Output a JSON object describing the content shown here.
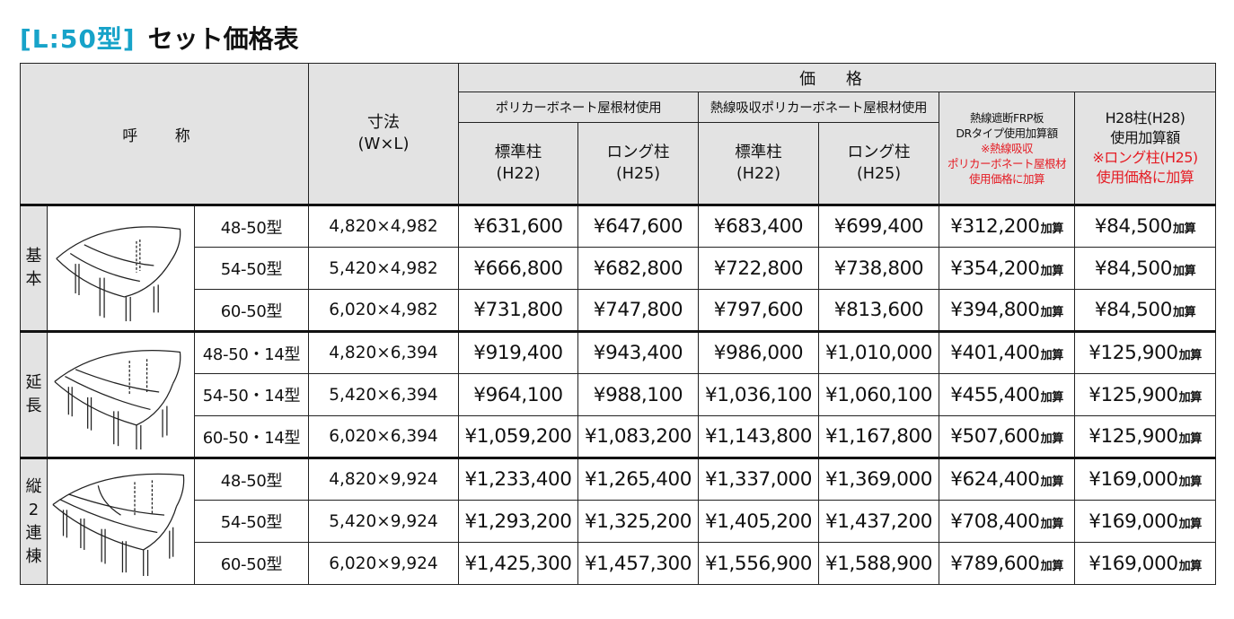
{
  "page": {
    "title_tag": "[L:50型]",
    "title": "セット価格表"
  },
  "header": {
    "name": "呼 称",
    "size_line1": "寸法",
    "size_line2": "(W×L)",
    "price": "価 格",
    "polycarbonate": "ポリカーボネート屋根材使用",
    "heat_absorb": "熱線吸収ポリカーボネート屋根材使用",
    "std_line1": "標準柱",
    "std_line2": "(H22)",
    "long_line1": "ロング柱",
    "long_line2": "(H25)",
    "frp_line1": "熱線遮断FRP板",
    "frp_line2": "DRタイプ使用加算額",
    "frp_note1": "※熱線吸収",
    "frp_note2": "ポリカーボネート屋根材",
    "frp_note3": "使用価格に加算",
    "h28_line1": "H28柱(H28)",
    "h28_line2": "使用加算額",
    "h28_note1": "※ロング柱(H25)",
    "h28_note2": "使用価格に加算"
  },
  "add_suffix": "加算",
  "groups": [
    {
      "label": "基本",
      "rows": [
        {
          "model": "48-50型",
          "dim": "4,820×4,982",
          "p1": "¥631,600",
          "p2": "¥647,600",
          "p3": "¥683,400",
          "p4": "¥699,400",
          "frp": "¥312,200",
          "h28": "¥84,500"
        },
        {
          "model": "54-50型",
          "dim": "5,420×4,982",
          "p1": "¥666,800",
          "p2": "¥682,800",
          "p3": "¥722,800",
          "p4": "¥738,800",
          "frp": "¥354,200",
          "h28": "¥84,500"
        },
        {
          "model": "60-50型",
          "dim": "6,020×4,982",
          "p1": "¥731,800",
          "p2": "¥747,800",
          "p3": "¥797,600",
          "p4": "¥813,600",
          "frp": "¥394,800",
          "h28": "¥84,500"
        }
      ]
    },
    {
      "label": "延長",
      "rows": [
        {
          "model": "48-50・14型",
          "dim": "4,820×6,394",
          "p1": "¥919,400",
          "p2": "¥943,400",
          "p3": "¥986,000",
          "p4": "¥1,010,000",
          "frp": "¥401,400",
          "h28": "¥125,900"
        },
        {
          "model": "54-50・14型",
          "dim": "5,420×6,394",
          "p1": "¥964,100",
          "p2": "¥988,100",
          "p3": "¥1,036,100",
          "p4": "¥1,060,100",
          "frp": "¥455,400",
          "h28": "¥125,900"
        },
        {
          "model": "60-50・14型",
          "dim": "6,020×6,394",
          "p1": "¥1,059,200",
          "p2": "¥1,083,200",
          "p3": "¥1,143,800",
          "p4": "¥1,167,800",
          "frp": "¥507,600",
          "h28": "¥125,900"
        }
      ]
    },
    {
      "label": "縦2連棟",
      "rows": [
        {
          "model": "48-50型",
          "dim": "4,820×9,924",
          "p1": "¥1,233,400",
          "p2": "¥1,265,400",
          "p3": "¥1,337,000",
          "p4": "¥1,369,000",
          "frp": "¥624,400",
          "h28": "¥169,000"
        },
        {
          "model": "54-50型",
          "dim": "5,420×9,924",
          "p1": "¥1,293,200",
          "p2": "¥1,325,200",
          "p3": "¥1,405,200",
          "p4": "¥1,437,200",
          "frp": "¥708,400",
          "h28": "¥169,000"
        },
        {
          "model": "60-50型",
          "dim": "6,020×9,924",
          "p1": "¥1,425,300",
          "p2": "¥1,457,300",
          "p3": "¥1,556,900",
          "p4": "¥1,588,900",
          "frp": "¥789,600",
          "h28": "¥169,000"
        }
      ]
    }
  ],
  "colors": {
    "title_tag": "#17a3c9",
    "note_red": "#e51c24",
    "header_bg": "#e3e3e3"
  }
}
